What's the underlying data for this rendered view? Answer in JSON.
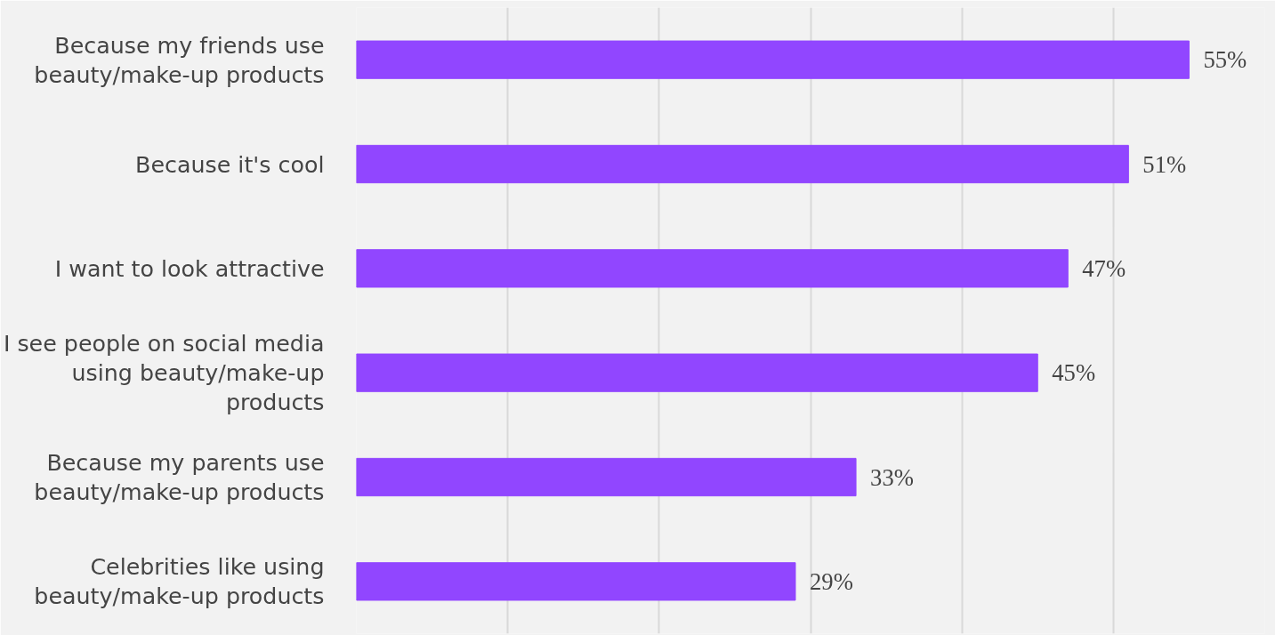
{
  "chart_data": {
    "type": "bar",
    "orientation": "horizontal",
    "categories": [
      "Because my friends use beauty/make-up products",
      "Because it's cool",
      "I want to look attractive",
      "I see people on social media using beauty/make-up products",
      "Because my parents use beauty/make-up products",
      "Celebrities like using beauty/make-up products"
    ],
    "values": [
      55,
      51,
      47,
      45,
      33,
      29
    ],
    "value_labels": [
      "55%",
      "51%",
      "47%",
      "45%",
      "33%",
      "29%"
    ],
    "color": "#9146ff",
    "xlim": [
      0,
      60
    ],
    "xticks": [
      {
        "value": 0,
        "label": null
      },
      {
        "value": 10,
        "label": null
      },
      {
        "value": 20,
        "label": null
      },
      {
        "value": 30,
        "label": null
      },
      {
        "value": 40,
        "label": null
      },
      {
        "value": 50,
        "label": null
      },
      {
        "value": 60,
        "label": null
      }
    ],
    "grid": "x",
    "tick_labels": "y"
  }
}
